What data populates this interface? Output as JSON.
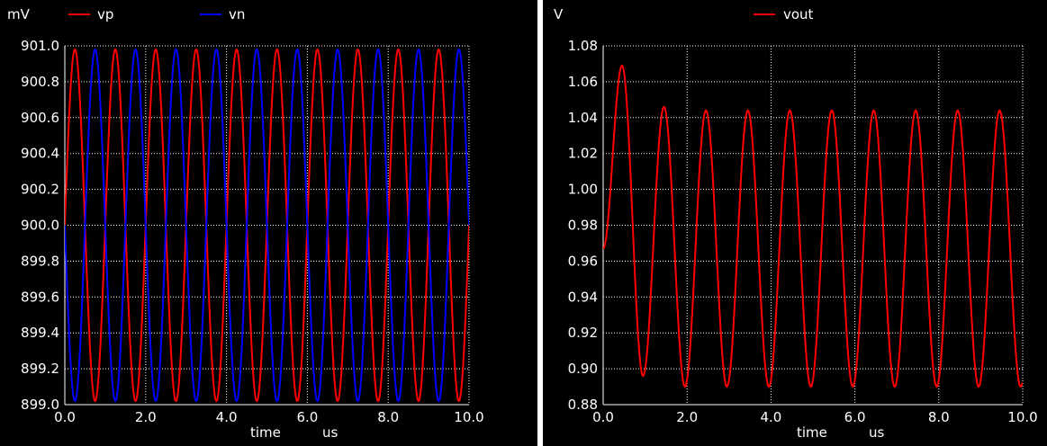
{
  "chart_data": [
    {
      "type": "line",
      "y_unit": "mV",
      "xlabel": "time",
      "x_unit": "us",
      "xlim": [
        0,
        10
      ],
      "ylim": [
        899.0,
        901.0
      ],
      "x_ticks": [
        "0.0",
        "2.0",
        "4.0",
        "6.0",
        "8.0",
        "10.0"
      ],
      "y_ticks": [
        "899.0",
        "899.2",
        "899.4",
        "899.6",
        "899.8",
        "900.0",
        "900.2",
        "900.4",
        "900.6",
        "900.8",
        "901.0"
      ],
      "grid": true,
      "legend_position": "top",
      "series": [
        {
          "name": "vp",
          "color": "#ff0000",
          "shape": "sine",
          "offset": 900.0,
          "amplitude": 0.98,
          "frequency_mhz": 1.0,
          "phase": "starts rising"
        },
        {
          "name": "vn",
          "color": "#0000ff",
          "shape": "sine",
          "offset": 900.0,
          "amplitude": 0.98,
          "frequency_mhz": 1.0,
          "phase": "starts falling"
        }
      ]
    },
    {
      "type": "line",
      "y_unit": "V",
      "xlabel": "time",
      "x_unit": "us",
      "xlim": [
        0,
        10
      ],
      "ylim": [
        0.88,
        1.08
      ],
      "x_ticks": [
        "0.0",
        "2.0",
        "4.0",
        "6.0",
        "8.0",
        "10.0"
      ],
      "y_ticks": [
        "0.88",
        "0.90",
        "0.92",
        "0.94",
        "0.96",
        "0.98",
        "1.00",
        "1.02",
        "1.04",
        "1.06",
        "1.08"
      ],
      "grid": true,
      "legend_position": "top",
      "series": [
        {
          "name": "vout",
          "color": "#ff0000",
          "x": [
            0.0,
            0.45,
            0.95,
            1.45,
            1.95,
            2.45,
            2.95,
            3.45,
            3.95,
            4.45,
            4.95,
            5.45,
            5.95,
            6.45,
            6.95,
            7.45,
            7.95,
            8.45,
            8.95,
            9.45,
            9.95,
            10.0
          ],
          "values": [
            0.967,
            1.069,
            0.896,
            1.046,
            0.89,
            1.044,
            0.89,
            1.044,
            0.89,
            1.044,
            0.89,
            1.044,
            0.89,
            1.044,
            0.89,
            1.044,
            0.89,
            1.044,
            0.89,
            1.044,
            0.89,
            0.892
          ]
        }
      ]
    }
  ]
}
